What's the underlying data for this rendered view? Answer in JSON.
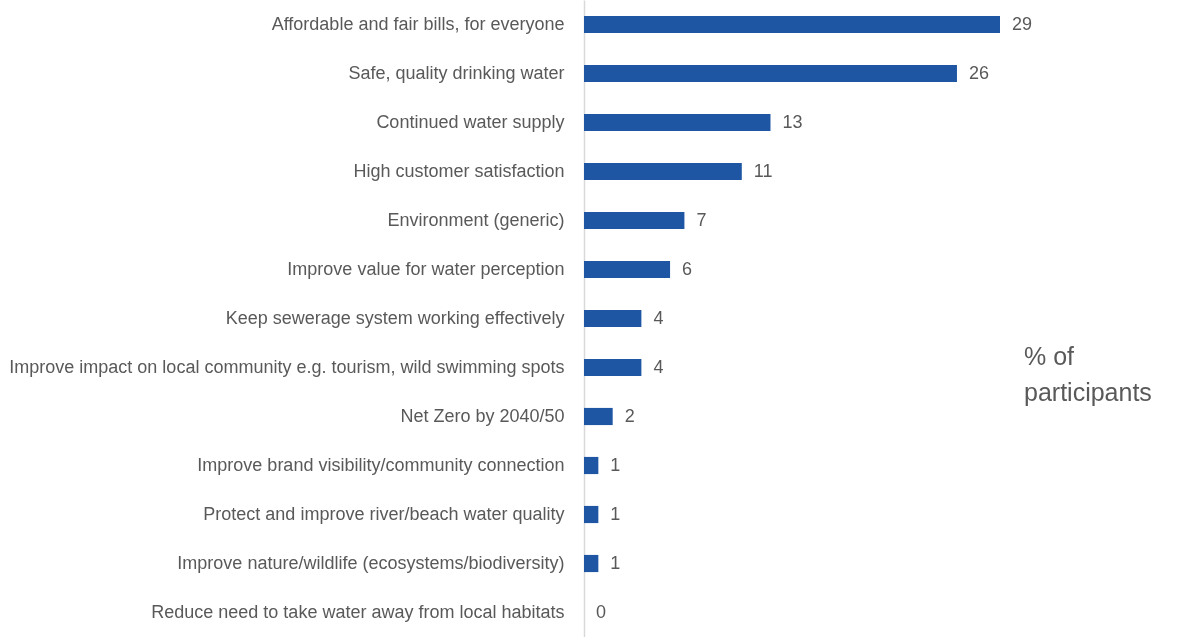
{
  "chart_data": {
    "type": "bar",
    "orientation": "horizontal",
    "categories": [
      "Affordable and fair bills, for everyone",
      "Safe, quality drinking water",
      "Continued water supply",
      "High customer satisfaction",
      "Environment (generic)",
      "Improve value for water perception",
      "Keep sewerage system working effectively",
      "Improve impact on local community e.g. tourism, wild swimming spots",
      "Net Zero by 2040/50",
      "Improve brand visibility/community connection",
      "Protect and improve river/beach water quality",
      "Improve nature/wildlife (ecosystems/biodiversity)",
      "Reduce need to take water away from local habitats"
    ],
    "values": [
      29,
      26,
      13,
      11,
      7,
      6,
      4,
      4,
      2,
      1,
      1,
      1,
      0
    ],
    "color": "#1f56a3",
    "data_labels": true,
    "annotations": [
      "% of participants"
    ]
  }
}
